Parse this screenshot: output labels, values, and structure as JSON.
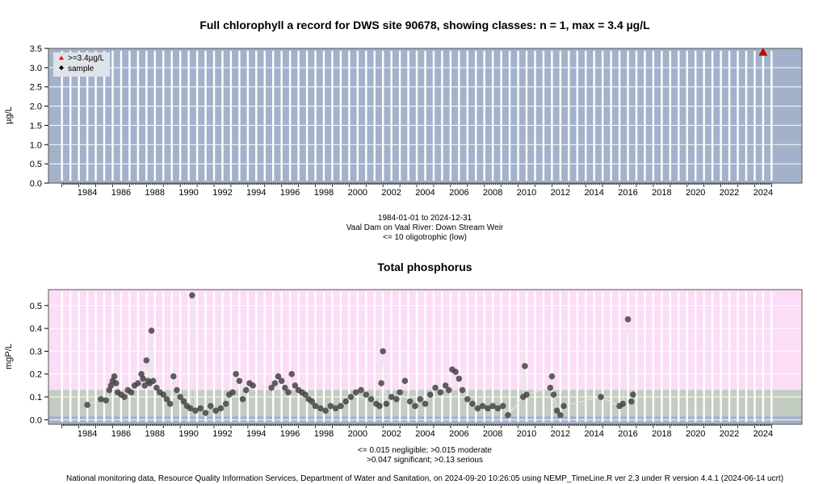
{
  "chart_data": [
    {
      "type": "scatter",
      "title": "Full chlorophyll a record for DWS site 90678, showing classes: n = 1, max = 3.4 µg/L",
      "ylabel": "µg/L",
      "xlabel": "",
      "xlim": [
        1982.2,
        2026.8
      ],
      "ylim": [
        0,
        3.5
      ],
      "x_ticks": [
        "1984",
        "1986",
        "1988",
        "1990",
        "1992",
        "1994",
        "1996",
        "1998",
        "2000",
        "2002",
        "2004",
        "2006",
        "2008",
        "2010",
        "2012",
        "2014",
        "2016",
        "2018",
        "2020",
        "2022",
        "2024"
      ],
      "y_ticks": [
        "0.0",
        "0.5",
        "1.0",
        "1.5",
        "2.0",
        "2.5",
        "3.0",
        "3.5"
      ],
      "grid": true,
      "background_color": "#a3b2ca",
      "legend_position": "top-left",
      "legend": [
        {
          "label": ">=3.4µg/L",
          "symbol": "triangle",
          "color": "#ff0000"
        },
        {
          "label": "sample",
          "symbol": "diamond",
          "color": "#000000"
        }
      ],
      "series": [
        {
          "name": ">=3.4µg/L",
          "points": [
            [
              2024.5,
              3.4
            ]
          ],
          "color": "#cc0000"
        }
      ],
      "captions": [
        "1984-01-01 to 2024-12-31",
        "Vaal Dam on Vaal River: Down Stream Weir",
        "<= 10 oligotrophic (low)"
      ]
    },
    {
      "type": "scatter",
      "title": "Total phosphorus",
      "ylabel": "mgP/L",
      "xlabel": "",
      "xlim": [
        1982.2,
        2026.8
      ],
      "ylim": [
        -0.02,
        0.57
      ],
      "x_ticks": [
        "1984",
        "1986",
        "1988",
        "1990",
        "1992",
        "1994",
        "1996",
        "1998",
        "2000",
        "2002",
        "2004",
        "2006",
        "2008",
        "2010",
        "2012",
        "2014",
        "2016",
        "2018",
        "2020",
        "2022",
        "2024"
      ],
      "y_ticks": [
        "0.0",
        "0.1",
        "0.2",
        "0.3",
        "0.4",
        "0.5"
      ],
      "grid": true,
      "classes": [
        {
          "label": "negligible",
          "upper": 0.015,
          "color": "#a3b2ca"
        },
        {
          "label": "moderate",
          "upper": 0.047,
          "color": "#c2ccc0"
        },
        {
          "label": "significant",
          "upper": 0.13,
          "color": "#c2ccc0"
        },
        {
          "label": "serious",
          "upper": 0.57,
          "color": "#fbddf7"
        }
      ],
      "series": [
        {
          "name": "sample",
          "color": "#444444",
          "points": [
            [
              1984.5,
              0.065
            ],
            [
              1985.3,
              0.09
            ],
            [
              1985.6,
              0.085
            ],
            [
              1985.8,
              0.13
            ],
            [
              1985.9,
              0.15
            ],
            [
              1986.0,
              0.17
            ],
            [
              1986.1,
              0.19
            ],
            [
              1986.2,
              0.16
            ],
            [
              1986.3,
              0.12
            ],
            [
              1986.5,
              0.11
            ],
            [
              1986.7,
              0.1
            ],
            [
              1986.9,
              0.13
            ],
            [
              1987.1,
              0.12
            ],
            [
              1987.3,
              0.15
            ],
            [
              1987.5,
              0.16
            ],
            [
              1987.7,
              0.2
            ],
            [
              1987.8,
              0.18
            ],
            [
              1987.9,
              0.15
            ],
            [
              1988.0,
              0.26
            ],
            [
              1988.1,
              0.17
            ],
            [
              1988.2,
              0.16
            ],
            [
              1988.3,
              0.39
            ],
            [
              1988.4,
              0.17
            ],
            [
              1988.6,
              0.14
            ],
            [
              1988.8,
              0.12
            ],
            [
              1989.0,
              0.11
            ],
            [
              1989.2,
              0.09
            ],
            [
              1989.4,
              0.07
            ],
            [
              1989.6,
              0.19
            ],
            [
              1989.8,
              0.13
            ],
            [
              1990.0,
              0.1
            ],
            [
              1990.2,
              0.08
            ],
            [
              1990.4,
              0.06
            ],
            [
              1990.6,
              0.05
            ],
            [
              1990.7,
              0.545
            ],
            [
              1990.9,
              0.04
            ],
            [
              1991.2,
              0.05
            ],
            [
              1991.5,
              0.03
            ],
            [
              1991.8,
              0.06
            ],
            [
              1992.1,
              0.04
            ],
            [
              1992.4,
              0.05
            ],
            [
              1992.7,
              0.07
            ],
            [
              1992.9,
              0.11
            ],
            [
              1993.1,
              0.12
            ],
            [
              1993.3,
              0.2
            ],
            [
              1993.5,
              0.17
            ],
            [
              1993.7,
              0.09
            ],
            [
              1993.9,
              0.13
            ],
            [
              1994.1,
              0.16
            ],
            [
              1994.3,
              0.15
            ],
            [
              1995.4,
              0.14
            ],
            [
              1995.6,
              0.16
            ],
            [
              1995.8,
              0.19
            ],
            [
              1996.0,
              0.17
            ],
            [
              1996.2,
              0.14
            ],
            [
              1996.4,
              0.12
            ],
            [
              1996.6,
              0.2
            ],
            [
              1996.8,
              0.15
            ],
            [
              1997.0,
              0.13
            ],
            [
              1997.2,
              0.12
            ],
            [
              1997.4,
              0.11
            ],
            [
              1997.6,
              0.09
            ],
            [
              1997.8,
              0.08
            ],
            [
              1998.0,
              0.06
            ],
            [
              1998.3,
              0.05
            ],
            [
              1998.6,
              0.04
            ],
            [
              1998.9,
              0.06
            ],
            [
              1999.2,
              0.05
            ],
            [
              1999.5,
              0.06
            ],
            [
              1999.8,
              0.08
            ],
            [
              2000.1,
              0.1
            ],
            [
              2000.4,
              0.12
            ],
            [
              2000.7,
              0.13
            ],
            [
              2001.0,
              0.11
            ],
            [
              2001.3,
              0.09
            ],
            [
              2001.6,
              0.07
            ],
            [
              2001.8,
              0.06
            ],
            [
              2001.9,
              0.16
            ],
            [
              2002.0,
              0.3
            ],
            [
              2002.2,
              0.07
            ],
            [
              2002.5,
              0.1
            ],
            [
              2002.8,
              0.09
            ],
            [
              2003.0,
              0.12
            ],
            [
              2003.3,
              0.17
            ],
            [
              2003.6,
              0.08
            ],
            [
              2003.9,
              0.06
            ],
            [
              2004.2,
              0.09
            ],
            [
              2004.5,
              0.07
            ],
            [
              2004.8,
              0.11
            ],
            [
              2005.1,
              0.14
            ],
            [
              2005.4,
              0.12
            ],
            [
              2005.7,
              0.15
            ],
            [
              2005.9,
              0.13
            ],
            [
              2006.1,
              0.22
            ],
            [
              2006.3,
              0.21
            ],
            [
              2006.5,
              0.18
            ],
            [
              2006.7,
              0.13
            ],
            [
              2007.0,
              0.09
            ],
            [
              2007.3,
              0.07
            ],
            [
              2007.6,
              0.05
            ],
            [
              2007.9,
              0.06
            ],
            [
              2008.2,
              0.05
            ],
            [
              2008.5,
              0.06
            ],
            [
              2008.8,
              0.05
            ],
            [
              2009.1,
              0.06
            ],
            [
              2009.4,
              0.02
            ],
            [
              2010.3,
              0.1
            ],
            [
              2010.4,
              0.235
            ],
            [
              2010.5,
              0.11
            ],
            [
              2011.9,
              0.14
            ],
            [
              2012.0,
              0.19
            ],
            [
              2012.1,
              0.11
            ],
            [
              2012.3,
              0.04
            ],
            [
              2012.5,
              0.02
            ],
            [
              2012.7,
              0.06
            ],
            [
              2014.9,
              0.1
            ],
            [
              2016.0,
              0.06
            ],
            [
              2016.2,
              0.07
            ],
            [
              2016.5,
              0.44
            ],
            [
              2016.7,
              0.08
            ],
            [
              2016.8,
              0.11
            ]
          ]
        }
      ],
      "captions": [
        "<= 0.015 negligible; >0.015 moderate",
        ">0.047 significant; >0.13 serious"
      ]
    }
  ],
  "footer": "National monitoring data, Resource Quality Information Services, Department of Water and Sanitation, on 2024-09-20 10:26:05 using NEMP_TimeLine.R ver 2.3 under R version 4.4.1 (2024-06-14 ucrt)"
}
